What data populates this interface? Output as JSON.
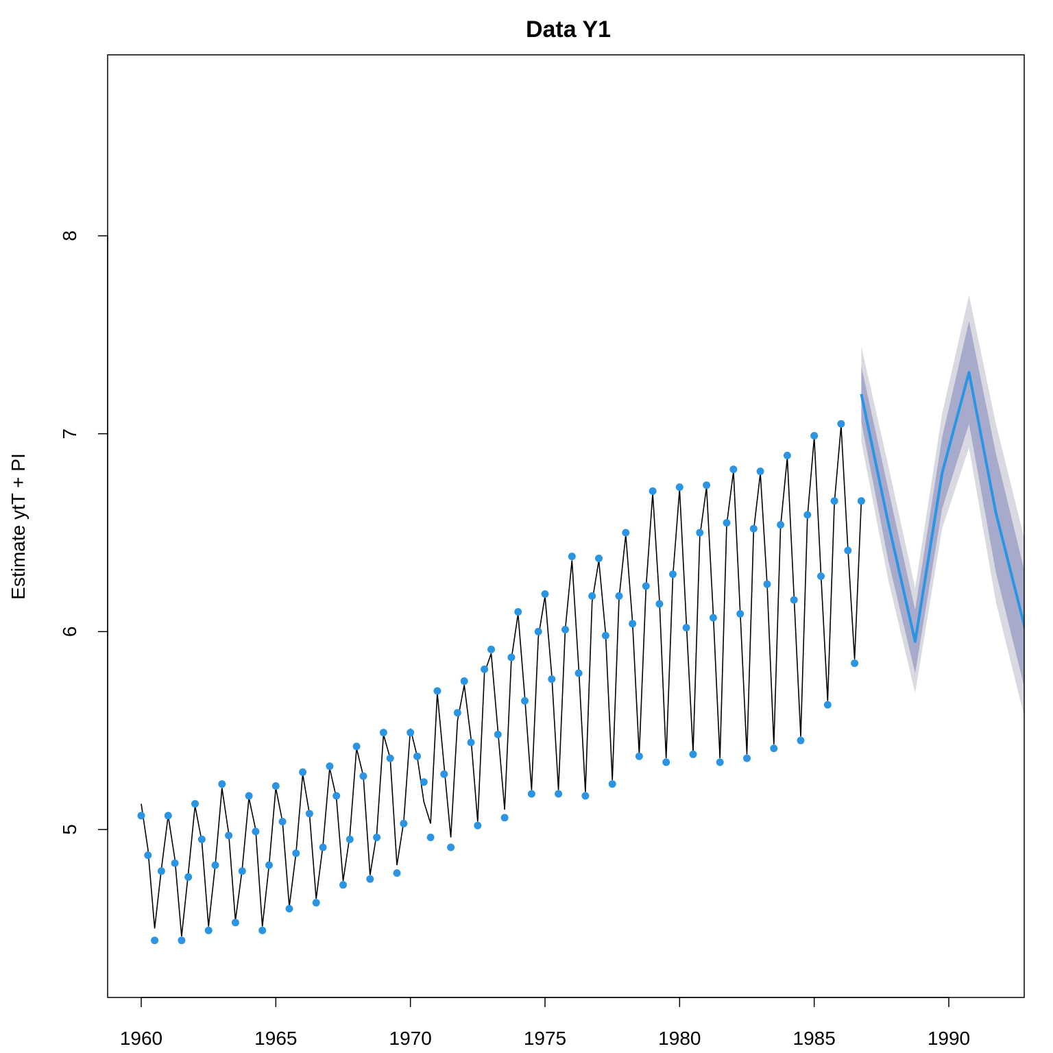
{
  "chart_data": {
    "type": "line",
    "title": "Data Y1",
    "xlabel": "",
    "ylabel": "Estimate ytT + PI",
    "xlim": [
      1960,
      1993
    ],
    "ylim": [
      4.2,
      8.9
    ],
    "x_ticks": [
      "1960",
      "1965",
      "1970",
      "1975",
      "1980",
      "1985",
      "1990"
    ],
    "y_ticks": [
      "5",
      "6",
      "7",
      "8"
    ],
    "colors": {
      "observed_points": "#2b95e3",
      "fitted_line": "#000000",
      "forecast_line": "#2b95e3",
      "inner_band": "#a8aacb",
      "outer_band": "#d9d9e1"
    },
    "observed": {
      "x": [
        1960.0,
        1960.25,
        1960.5,
        1960.75,
        1961.0,
        1961.25,
        1961.5,
        1961.75,
        1962.0,
        1962.25,
        1962.5,
        1962.75,
        1963.0,
        1963.25,
        1963.5,
        1963.75,
        1964.0,
        1964.25,
        1964.5,
        1964.75,
        1965.0,
        1965.25,
        1965.5,
        1965.75,
        1966.0,
        1966.25,
        1966.5,
        1966.75,
        1967.0,
        1967.25,
        1967.5,
        1967.75,
        1968.0,
        1968.25,
        1968.5,
        1968.75,
        1969.0,
        1969.25,
        1969.5,
        1969.75,
        1970.0,
        1970.25,
        1970.5,
        1970.75,
        1971.0,
        1971.25,
        1971.5,
        1971.75,
        1972.0,
        1972.25,
        1972.5,
        1972.75,
        1973.0,
        1973.25,
        1973.5,
        1973.75,
        1974.0,
        1974.25,
        1974.5,
        1974.75,
        1975.0,
        1975.25,
        1975.5,
        1975.75,
        1976.0,
        1976.25,
        1976.5,
        1976.75,
        1977.0,
        1977.25,
        1977.5,
        1977.75,
        1978.0,
        1978.25,
        1978.5,
        1978.75,
        1979.0,
        1979.25,
        1979.5,
        1979.75,
        1980.0,
        1980.25,
        1980.5,
        1980.75,
        1981.0,
        1981.25,
        1981.5,
        1981.75,
        1982.0,
        1982.25,
        1982.5,
        1982.75,
        1983.0,
        1983.25,
        1983.5,
        1983.75,
        1984.0,
        1984.25,
        1984.5,
        1984.75,
        1985.0,
        1985.25,
        1985.5,
        1985.75,
        1986.0,
        1986.25,
        1986.5,
        1986.75
      ],
      "y": [
        5.07,
        4.87,
        4.44,
        4.79,
        5.07,
        4.83,
        4.44,
        4.76,
        5.13,
        4.95,
        4.49,
        4.82,
        5.23,
        4.97,
        4.53,
        4.79,
        5.17,
        4.99,
        4.49,
        4.82,
        5.22,
        5.04,
        4.6,
        4.88,
        5.29,
        5.08,
        4.63,
        4.91,
        5.32,
        5.17,
        4.72,
        4.95,
        5.42,
        5.27,
        4.75,
        4.96,
        5.49,
        5.36,
        4.78,
        5.03,
        5.49,
        5.37,
        5.24,
        4.96,
        5.7,
        5.28,
        4.91,
        5.59,
        5.75,
        5.44,
        5.02,
        5.81,
        5.91,
        5.48,
        5.06,
        5.87,
        6.1,
        5.65,
        5.18,
        6.0,
        6.19,
        5.76,
        5.18,
        6.01,
        6.38,
        5.79,
        5.17,
        6.18,
        6.37,
        5.98,
        5.23,
        6.18,
        6.5,
        6.04,
        5.37,
        6.23,
        6.71,
        6.14,
        5.34,
        6.29,
        6.73,
        6.02,
        5.38,
        6.5,
        6.74,
        6.07,
        5.34,
        6.55,
        6.82,
        6.09,
        5.36,
        6.52,
        6.81,
        6.24,
        5.41,
        6.54,
        6.89,
        6.16,
        5.45,
        6.59,
        6.99,
        6.28,
        5.63,
        6.66,
        7.05,
        6.41,
        5.84,
        6.66
      ]
    },
    "fitted": {
      "x": [
        1960.0,
        1960.25,
        1960.5,
        1960.75,
        1961.0,
        1961.25,
        1961.5,
        1961.75,
        1962.0,
        1962.25,
        1962.5,
        1962.75,
        1963.0,
        1963.25,
        1963.5,
        1963.75,
        1964.0,
        1964.25,
        1964.5,
        1964.75,
        1965.0,
        1965.25,
        1965.5,
        1965.75,
        1966.0,
        1966.25,
        1966.5,
        1966.75,
        1967.0,
        1967.25,
        1967.5,
        1967.75,
        1968.0,
        1968.25,
        1968.5,
        1968.75,
        1969.0,
        1969.25,
        1969.5,
        1969.75,
        1970.0,
        1970.25,
        1970.5,
        1970.75,
        1971.0,
        1971.25,
        1971.5,
        1971.75,
        1972.0,
        1972.25,
        1972.5,
        1972.75,
        1973.0,
        1973.25,
        1973.5,
        1973.75,
        1974.0,
        1974.25,
        1974.5,
        1974.75,
        1975.0,
        1975.25,
        1975.5,
        1975.75,
        1976.0,
        1976.25,
        1976.5,
        1976.75,
        1977.0,
        1977.25,
        1977.5,
        1977.75,
        1978.0,
        1978.25,
        1978.5,
        1978.75,
        1979.0,
        1979.25,
        1979.5,
        1979.75,
        1980.0,
        1980.25,
        1980.5,
        1980.75,
        1981.0,
        1981.25,
        1981.5,
        1981.75,
        1982.0,
        1982.25,
        1982.5,
        1982.75,
        1983.0,
        1983.25,
        1983.5,
        1983.75,
        1984.0,
        1984.25,
        1984.5,
        1984.75,
        1985.0,
        1985.25,
        1985.5,
        1985.75,
        1986.0,
        1986.25,
        1986.5,
        1986.75
      ],
      "y": [
        5.13,
        4.9,
        4.5,
        4.8,
        5.07,
        4.85,
        4.46,
        4.78,
        5.12,
        4.94,
        4.51,
        4.82,
        5.21,
        4.98,
        4.54,
        4.8,
        5.16,
        5.0,
        4.51,
        4.82,
        5.21,
        5.04,
        4.61,
        4.88,
        5.28,
        5.08,
        4.65,
        4.92,
        5.31,
        5.16,
        4.74,
        4.97,
        5.41,
        5.27,
        4.77,
        4.98,
        5.48,
        5.36,
        4.82,
        5.04,
        5.51,
        5.37,
        5.14,
        5.03,
        5.69,
        5.32,
        4.96,
        5.55,
        5.73,
        5.46,
        5.04,
        5.79,
        5.89,
        5.5,
        5.1,
        5.86,
        6.09,
        5.67,
        5.2,
        5.97,
        6.18,
        5.78,
        5.2,
        6.01,
        6.36,
        5.82,
        5.19,
        6.15,
        6.36,
        5.99,
        5.25,
        6.17,
        6.49,
        6.05,
        5.38,
        6.22,
        6.7,
        6.16,
        5.36,
        6.28,
        6.72,
        6.05,
        5.39,
        6.48,
        6.73,
        6.09,
        5.36,
        6.54,
        6.81,
        6.1,
        5.38,
        6.51,
        6.8,
        6.24,
        5.43,
        6.53,
        6.88,
        6.18,
        5.47,
        6.58,
        6.98,
        6.29,
        5.65,
        6.65,
        7.04,
        6.42,
        5.86,
        6.66
      ]
    },
    "forecast": {
      "x": [
        1986.75,
        1987.75,
        1988.75,
        1989.75,
        1990.75,
        1991.75,
        1992.75,
        1993.0
      ],
      "y": [
        7.2,
        6.55,
        5.95,
        6.8,
        7.31,
        6.6,
        6.06,
        5.92
      ],
      "inner_lower": [
        7.06,
        6.36,
        5.79,
        6.62,
        7.05,
        6.3,
        5.75,
        5.6
      ],
      "inner_upper": [
        7.34,
        6.72,
        6.11,
        6.98,
        7.57,
        6.9,
        6.34,
        6.22
      ],
      "outer_lower": [
        6.96,
        6.26,
        5.69,
        6.52,
        6.93,
        6.15,
        5.6,
        5.44
      ],
      "outer_upper": [
        7.44,
        6.84,
        6.22,
        7.1,
        7.7,
        7.05,
        6.5,
        6.38
      ]
    }
  }
}
